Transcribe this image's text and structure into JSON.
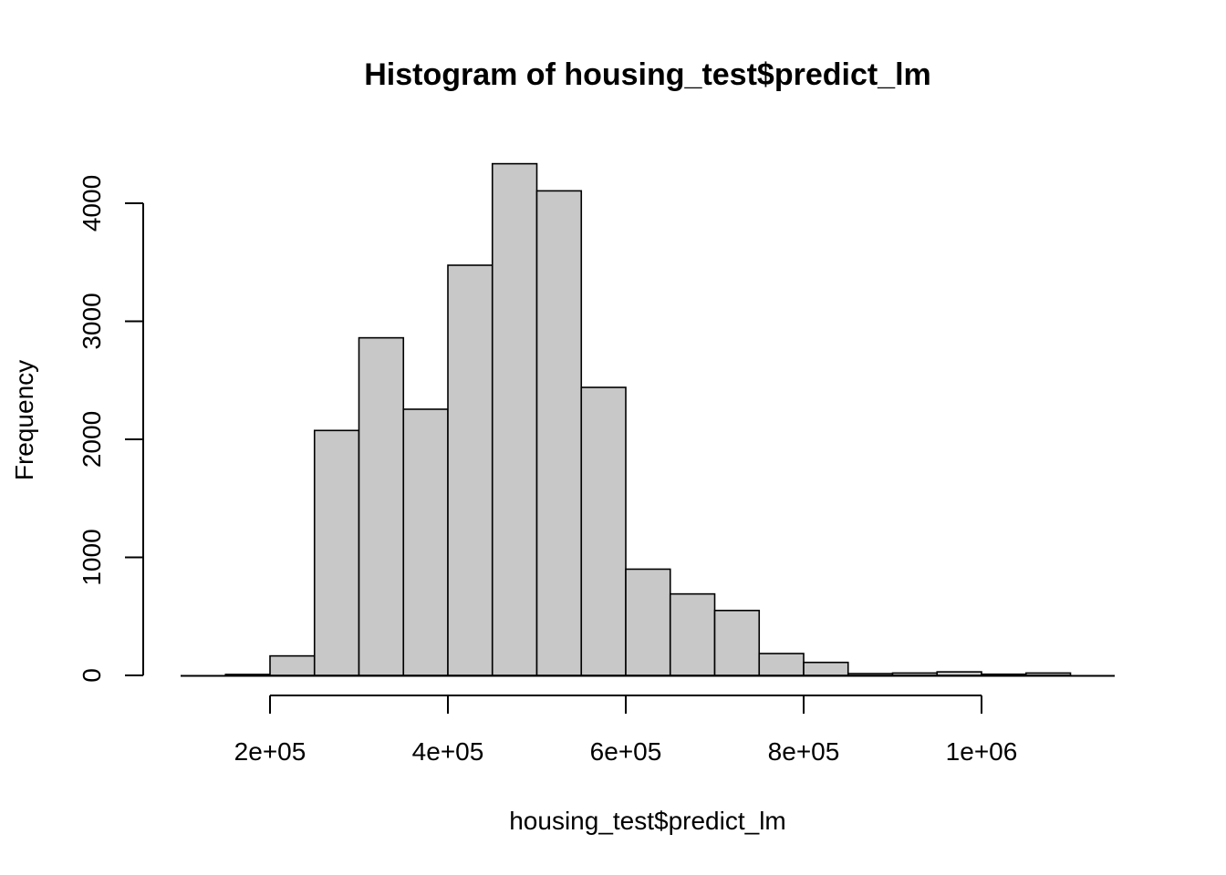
{
  "chart_data": {
    "type": "bar",
    "title": "Histogram of housing_test$predict_lm",
    "xlabel": "housing_test$predict_lm",
    "ylabel": "Frequency",
    "bin_edges": [
      150000,
      200000,
      250000,
      300000,
      350000,
      400000,
      450000,
      500000,
      550000,
      600000,
      650000,
      700000,
      750000,
      800000,
      850000,
      900000,
      950000,
      1000000,
      1050000,
      1100000
    ],
    "values": [
      8,
      165,
      2075,
      2860,
      2255,
      3475,
      4335,
      4105,
      2440,
      900,
      690,
      550,
      185,
      110,
      15,
      20,
      30,
      10,
      20
    ],
    "xlim": [
      100000,
      1150000
    ],
    "ylim": [
      0,
      4335
    ],
    "x_ticks": [
      200000,
      400000,
      600000,
      800000,
      1000000
    ],
    "x_tick_labels": [
      "2e+05",
      "4e+05",
      "6e+05",
      "8e+05",
      "1e+06"
    ],
    "y_ticks": [
      0,
      1000,
      2000,
      3000,
      4000
    ],
    "y_tick_labels": [
      "0",
      "1000",
      "2000",
      "3000",
      "4000"
    ],
    "grid": false,
    "bar_fill": "#c8c8c8",
    "bar_stroke": "#000000"
  }
}
